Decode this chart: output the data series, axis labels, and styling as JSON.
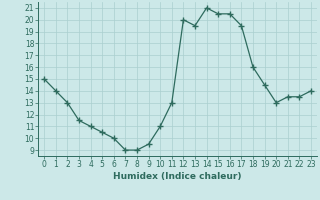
{
  "x": [
    0,
    1,
    2,
    3,
    4,
    5,
    6,
    7,
    8,
    9,
    10,
    11,
    12,
    13,
    14,
    15,
    16,
    17,
    18,
    19,
    20,
    21,
    22,
    23
  ],
  "y": [
    15,
    14,
    13,
    11.5,
    11,
    10.5,
    10,
    9,
    9,
    9.5,
    11,
    13,
    20,
    19.5,
    21,
    20.5,
    20.5,
    19.5,
    16,
    14.5,
    13,
    13.5,
    13.5,
    14
  ],
  "line_color": "#2e6b5e",
  "marker": "+",
  "marker_size": 4,
  "bg_color": "#cce8e8",
  "grid_color": "#aacfcf",
  "xlabel": "Humidex (Indice chaleur)",
  "xlim": [
    -0.5,
    23.5
  ],
  "ylim": [
    8.5,
    21.5
  ],
  "xticks": [
    0,
    1,
    2,
    3,
    4,
    5,
    6,
    7,
    8,
    9,
    10,
    11,
    12,
    13,
    14,
    15,
    16,
    17,
    18,
    19,
    20,
    21,
    22,
    23
  ],
  "yticks": [
    9,
    10,
    11,
    12,
    13,
    14,
    15,
    16,
    17,
    18,
    19,
    20,
    21
  ],
  "tick_label_fontsize": 5.5,
  "xlabel_fontsize": 6.5
}
